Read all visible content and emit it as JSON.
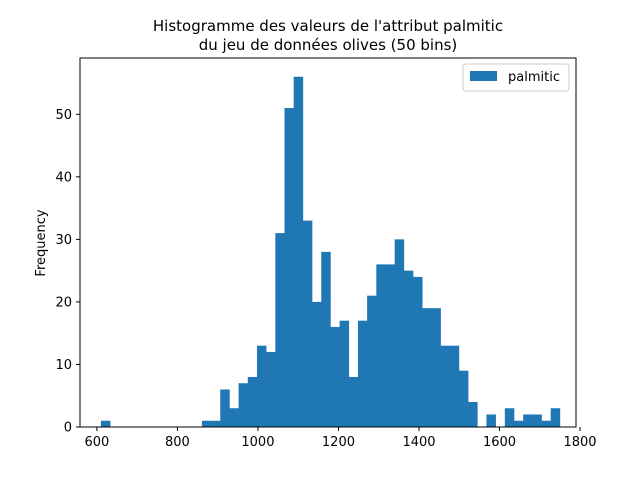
{
  "chart_data": {
    "type": "bar",
    "title_line1": "Histogramme des valeurs de l'attribut palmitic",
    "title_line2": "du jeu de données olives (50 bins)",
    "ylabel": "Frequency",
    "xlim": [
      558,
      1790
    ],
    "ylim": [
      0,
      59
    ],
    "bin_start": 610,
    "bin_width": 22.8,
    "grid": false,
    "legend_placement": "upper right",
    "xticks": [
      600,
      800,
      1000,
      1200,
      1400,
      1600,
      1800
    ],
    "yticks": [
      0,
      10,
      20,
      30,
      40,
      50
    ],
    "series": [
      {
        "name": "palmitic",
        "color": "#1f77b4",
        "values": [
          1,
          0,
          0,
          0,
          0,
          0,
          0,
          0,
          0,
          0,
          0,
          1,
          1,
          6,
          3,
          7,
          8,
          13,
          12,
          31,
          51,
          56,
          33,
          20,
          28,
          16,
          17,
          8,
          17,
          21,
          26,
          26,
          30,
          25,
          24,
          19,
          19,
          13,
          13,
          9,
          4,
          0,
          2,
          0,
          3,
          1,
          2,
          2,
          1,
          3
        ]
      }
    ]
  }
}
